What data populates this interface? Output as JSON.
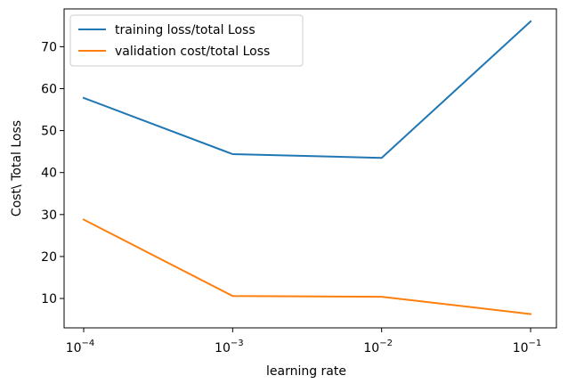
{
  "chart_data": {
    "type": "line",
    "x": [
      0.0001,
      0.001,
      0.01,
      0.1
    ],
    "x_tick_labels": [
      {
        "base": "10",
        "exp": "−4"
      },
      {
        "base": "10",
        "exp": "−3"
      },
      {
        "base": "10",
        "exp": "−2"
      },
      {
        "base": "10",
        "exp": "−1"
      }
    ],
    "xscale": "log",
    "xlabel": "learning rate",
    "ylabel": "Cost\\ Total Loss",
    "yticks": [
      10,
      20,
      30,
      40,
      50,
      60,
      70
    ],
    "ylim": [
      3,
      79
    ],
    "grid": false,
    "legend_position": "top-left",
    "series": [
      {
        "name": "training loss/total Loss",
        "color": "#1f77b4",
        "values": [
          57.8,
          44.4,
          43.5,
          76.0
        ]
      },
      {
        "name": "validation cost/total Loss",
        "color": "#ff7f0e",
        "values": [
          28.8,
          10.6,
          10.4,
          6.3
        ]
      }
    ]
  }
}
